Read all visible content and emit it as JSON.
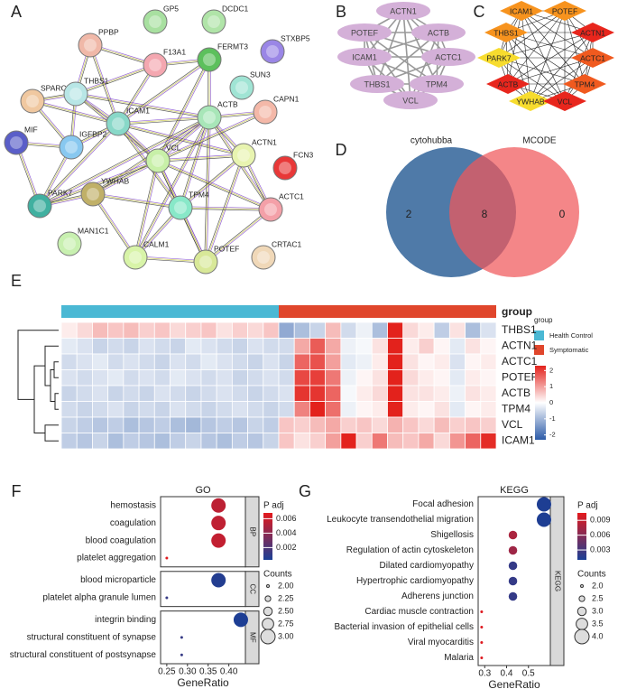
{
  "chart_data": [
    {
      "type": "string-network",
      "panel": "A",
      "nodes": [
        {
          "label": "GP5",
          "color": "#a8e0a0"
        },
        {
          "label": "DCDC1",
          "color": "#b0e4a8"
        },
        {
          "label": "STXBP5",
          "color": "#9a86e6"
        },
        {
          "label": "PPBP",
          "color": "#f0b8a8"
        },
        {
          "label": "F13A1",
          "color": "#f4a7b0"
        },
        {
          "label": "FERMT3",
          "color": "#5cc05c"
        },
        {
          "label": "SUN3",
          "color": "#a0e4d4"
        },
        {
          "label": "SPARC",
          "color": "#f0c8a0"
        },
        {
          "label": "THBS1",
          "color": "#b8e6e6"
        },
        {
          "label": "CAPN1",
          "color": "#f4b8a8"
        },
        {
          "label": "ICAM1",
          "color": "#88d8c8"
        },
        {
          "label": "ACTB",
          "color": "#a8e6b8"
        },
        {
          "label": "MIF",
          "color": "#5a5ec8"
        },
        {
          "label": "IGFBP2",
          "color": "#88c8f0"
        },
        {
          "label": "VCL",
          "color": "#c8f0a8"
        },
        {
          "label": "ACTN1",
          "color": "#e8f4b0"
        },
        {
          "label": "FCN3",
          "color": "#e83838"
        },
        {
          "label": "PARK7",
          "color": "#40b0a0"
        },
        {
          "label": "YWHAB",
          "color": "#c0b068"
        },
        {
          "label": "TPM4",
          "color": "#88e8c8"
        },
        {
          "label": "ACTC1",
          "color": "#f4a0a8"
        },
        {
          "label": "MAN1C1",
          "color": "#c8f0b0"
        },
        {
          "label": "CALM1",
          "color": "#d8f4a8"
        },
        {
          "label": "POTEF",
          "color": "#d8e898"
        },
        {
          "label": "CRTAC1",
          "color": "#f0d8b8"
        }
      ]
    },
    {
      "type": "ellipse-network",
      "panel": "B",
      "color": "#d4b0d8",
      "nodes": [
        "ACTN1",
        "POTEF",
        "ACTB",
        "ICAM1",
        "ACTC1",
        "THBS1",
        "TPM4",
        "VCL"
      ]
    },
    {
      "type": "diamond-network",
      "panel": "C",
      "nodes": [
        {
          "label": "ICAM1",
          "color": "#f7931e"
        },
        {
          "label": "POTEF",
          "color": "#f7931e"
        },
        {
          "label": "THBS1",
          "color": "#f7931e"
        },
        {
          "label": "ACTN1",
          "color": "#e8261d"
        },
        {
          "label": "PARK7",
          "color": "#f7dc2e"
        },
        {
          "label": "ACTC1",
          "color": "#f05a1f"
        },
        {
          "label": "ACTB",
          "color": "#e8261d"
        },
        {
          "label": "TPM4",
          "color": "#f05a1f"
        },
        {
          "label": "YWHAB",
          "color": "#f7dc2e"
        },
        {
          "label": "VCL",
          "color": "#e8261d"
        }
      ]
    },
    {
      "type": "venn",
      "panel": "D",
      "sets": [
        {
          "name": "cytohubba",
          "color": "#4f7aa8"
        },
        {
          "name": "MCODE",
          "color": "#f0575a"
        }
      ],
      "counts": [
        2,
        8,
        0
      ]
    },
    {
      "type": "heatmap",
      "panel": "E",
      "group_label": "group",
      "legend_title": "group",
      "rows": [
        "THBS1",
        "ACTN1",
        "ACTC1",
        "POTEF",
        "ACTB",
        "TPM4",
        "VCL",
        "ICAM1"
      ],
      "series": [
        {
          "name": "Health Control",
          "color": "#4bb8d4",
          "values": [
            [
              0.2,
              0.4,
              0.7,
              0.6,
              0.7,
              0.5,
              0.6,
              0.4,
              0.5,
              0.6,
              0.3,
              0.5,
              0.4,
              0.6
            ],
            [
              -0.3,
              -0.4,
              -0.6,
              -0.5,
              -0.6,
              -0.4,
              -0.5,
              -0.6,
              -0.3,
              -0.4,
              -0.5,
              -0.6,
              -0.4,
              -0.5
            ],
            [
              -0.5,
              -0.4,
              -0.3,
              -0.5,
              -0.4,
              -0.5,
              -0.6,
              -0.4,
              -0.5,
              -0.3,
              -0.4,
              -0.5,
              -0.6,
              -0.4
            ],
            [
              -0.4,
              -0.5,
              -0.4,
              -0.3,
              -0.5,
              -0.4,
              -0.5,
              -0.3,
              -0.4,
              -0.5,
              -0.4,
              -0.6,
              -0.5,
              -0.4
            ],
            [
              -0.6,
              -0.5,
              -0.4,
              -0.6,
              -0.5,
              -0.6,
              -0.4,
              -0.5,
              -0.6,
              -0.5,
              -0.4,
              -0.5,
              -0.6,
              -0.5
            ],
            [
              -0.5,
              -0.6,
              -0.5,
              -0.4,
              -0.6,
              -0.5,
              -0.6,
              -0.4,
              -0.5,
              -0.6,
              -0.5,
              -0.4,
              -0.5,
              -0.6
            ],
            [
              -0.6,
              -0.7,
              -0.8,
              -0.7,
              -0.9,
              -0.8,
              -0.7,
              -0.9,
              -1.0,
              -0.8,
              -0.7,
              -0.8,
              -0.6,
              -0.7
            ],
            [
              -0.7,
              -0.8,
              -0.6,
              -0.9,
              -0.7,
              -0.8,
              -0.9,
              -0.7,
              -0.6,
              -0.8,
              -0.9,
              -0.7,
              -0.8,
              -0.6
            ]
          ]
        },
        {
          "name": "Symptomatic",
          "color": "#e0462c",
          "values": [
            [
              -1.2,
              -0.9,
              -0.6,
              0.7,
              -0.5,
              -0.2,
              -0.9,
              2.3,
              0.4,
              0.2,
              -0.7,
              0.3,
              -0.9,
              -0.4
            ],
            [
              -0.5,
              0.9,
              1.7,
              0.9,
              -0.2,
              -0.1,
              0.3,
              2.4,
              0.2,
              0.5,
              0.1,
              -0.3,
              0.3,
              0.1
            ],
            [
              -0.6,
              1.6,
              1.8,
              1.0,
              -0.3,
              -0.2,
              0.2,
              2.4,
              0.3,
              0.1,
              0.2,
              -0.4,
              0.1,
              0.2
            ],
            [
              -0.5,
              1.9,
              2.0,
              1.4,
              -0.2,
              0.1,
              0.3,
              2.5,
              0.4,
              0.2,
              0.1,
              -0.3,
              0.2,
              0.1
            ],
            [
              -0.4,
              2.1,
              2.1,
              1.6,
              -0.1,
              0.2,
              0.4,
              2.4,
              0.3,
              0.3,
              0.2,
              -0.2,
              0.3,
              0.2
            ],
            [
              -0.5,
              1.3,
              2.3,
              1.5,
              -0.2,
              0.1,
              0.2,
              2.4,
              0.2,
              0.1,
              0.3,
              -0.3,
              0.1,
              0.2
            ],
            [
              0.6,
              0.5,
              0.7,
              0.9,
              0.5,
              0.6,
              0.4,
              0.8,
              0.6,
              0.4,
              0.7,
              0.5,
              0.6,
              0.5
            ],
            [
              0.6,
              0.3,
              0.5,
              1.0,
              2.4,
              0.5,
              1.4,
              0.7,
              0.6,
              0.9,
              0.4,
              1.1,
              1.6,
              2.2
            ]
          ]
        }
      ],
      "colors": [
        "#2c5ba8",
        "#ffffff",
        "#e3221c"
      ],
      "clim": [
        -2.3,
        2.3
      ],
      "cticks": [
        2,
        1,
        0,
        -1,
        -2
      ]
    },
    {
      "type": "dotplot",
      "panel": "F",
      "title": "GO",
      "xlabel": "GeneRatio",
      "facets": [
        {
          "name": "BP",
          "terms": [
            "hemostasis",
            "coagulation",
            "blood coagulation",
            "platelet aggregation"
          ],
          "x": [
            0.375,
            0.375,
            0.375,
            0.25
          ],
          "counts": [
            3,
            3,
            3,
            2
          ],
          "padj": [
            0.0055,
            0.0056,
            0.0057,
            0.0067
          ]
        },
        {
          "name": "CC",
          "terms": [
            "blood microparticle",
            "platelet alpha granule lumen"
          ],
          "x": [
            0.375,
            0.25
          ],
          "counts": [
            3,
            2
          ],
          "padj": [
            0.0006,
            0.0012
          ]
        },
        {
          "name": "MF",
          "terms": [
            "integrin binding",
            "structural constituent of synapse",
            "structural constituent of postsynapse"
          ],
          "x": [
            0.429,
            0.286,
            0.286
          ],
          "counts": [
            3,
            2,
            2
          ],
          "padj": [
            0.0004,
            0.0012,
            0.0012
          ]
        }
      ],
      "xlim": [
        0.235,
        0.44
      ],
      "xticks": [
        0.25,
        {
          "value": 0.3,
          "label": "0.30"
        },
        0.35,
        {
          "value": 0.4,
          "label": "0.40"
        }
      ],
      "color_title": "P adj",
      "colors": [
        "#1a3f96",
        "#e4191c"
      ],
      "clim": [
        0.0003,
        0.0068
      ],
      "cticks": [
        0.006,
        0.004,
        0.002
      ],
      "size_title": "Counts",
      "size_ticks": [
        {
          "value": 2,
          "label": "2.00"
        },
        2.25,
        {
          "value": 2.5,
          "label": "2.50"
        },
        2.75,
        {
          "value": 3,
          "label": "3.00"
        }
      ]
    },
    {
      "type": "dotplot",
      "panel": "G",
      "title": "KEGG",
      "xlabel": "GeneRatio",
      "facets": [
        {
          "name": "KEGG",
          "terms": [
            "Focal adhesion",
            "Leukocyte transendothelial migration",
            "Shigellosis",
            "Regulation of actin cytoskeleton",
            "Dilated cardiomyopathy",
            "Hypertrophic cardiomyopathy",
            "Adherens junction",
            "Cardiac muscle contraction",
            "Bacterial invasion of epithelial cells",
            "Viral myocarditis",
            "Malaria"
          ],
          "x": [
            0.571,
            0.571,
            0.429,
            0.429,
            0.429,
            0.429,
            0.429,
            0.286,
            0.286,
            0.286,
            0.286
          ],
          "counts": [
            4,
            4,
            3,
            3,
            3,
            3,
            3,
            2,
            2,
            2,
            2
          ],
          "padj": [
            0.0012,
            0.0012,
            0.0078,
            0.0072,
            0.0022,
            0.0022,
            0.0022,
            0.0102,
            0.0102,
            0.0102,
            0.0102
          ]
        }
      ],
      "xlim": [
        0.27,
        0.6
      ],
      "xticks": [
        0.3,
        0.4,
        0.5
      ],
      "color_title": "P adj",
      "colors": [
        "#1a3f96",
        "#e4191c"
      ],
      "clim": [
        0.001,
        0.0105
      ],
      "cticks": [
        0.009,
        0.006,
        0.003
      ],
      "size_title": "Counts",
      "size_ticks": [
        {
          "value": 2,
          "label": "2.0"
        },
        2.5,
        {
          "value": 3,
          "label": "3.0"
        },
        3.5,
        {
          "value": 4,
          "label": "4.0"
        }
      ]
    }
  ]
}
